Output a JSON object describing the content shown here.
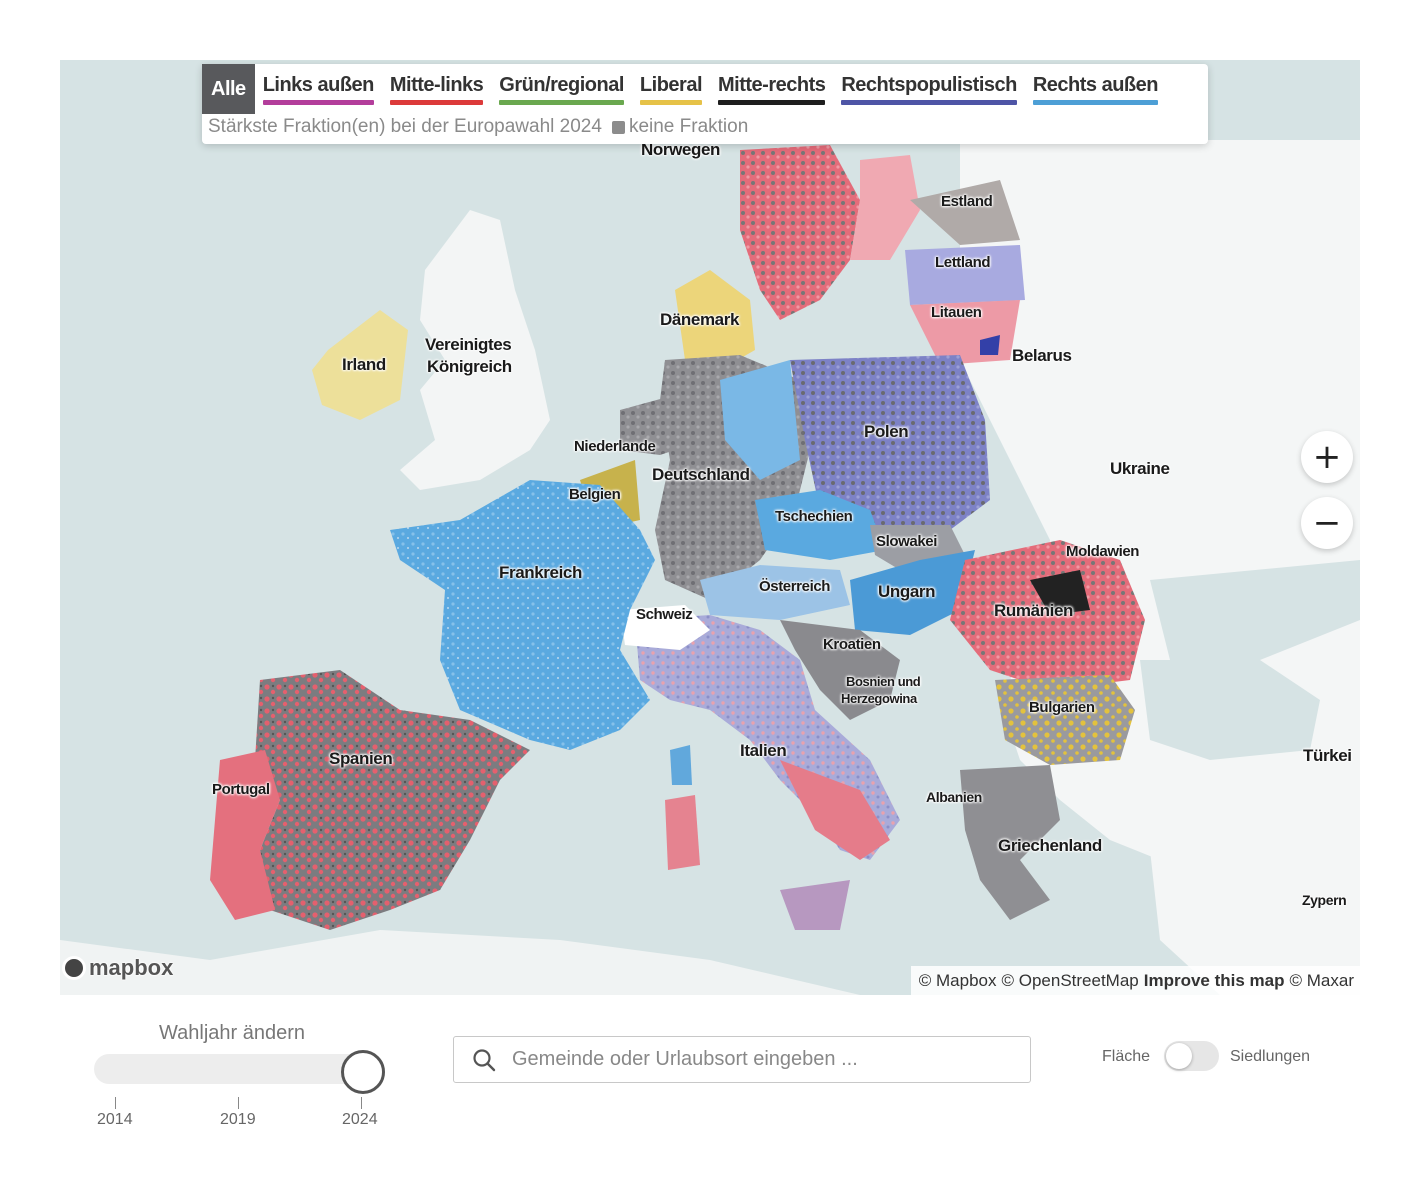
{
  "legend": {
    "tabs": [
      {
        "label": "Alle",
        "color": "#58595c",
        "active": true
      },
      {
        "label": "Links außen",
        "color": "#b33d9b"
      },
      {
        "label": "Mitte-links",
        "color": "#dc3a3a"
      },
      {
        "label": "Grün/regional",
        "color": "#6aa84f"
      },
      {
        "label": "Liberal",
        "color": "#e6c248"
      },
      {
        "label": "Mitte-rechts",
        "color": "#1e1e1e"
      },
      {
        "label": "Rechtspopulistisch",
        "color": "#4e55a6"
      },
      {
        "label": "Rechts außen",
        "color": "#4d9fd6"
      }
    ],
    "subtitle": "Stärkste Fraktion(en) bei der Europawahl 2024",
    "no_faction": "keine Fraktion"
  },
  "map": {
    "labels": {
      "norwegen": "Norwegen",
      "estland": "Estland",
      "lettland": "Lettland",
      "litauen": "Litauen",
      "belarus": "Belarus",
      "daenemark": "Dänemark",
      "irland": "Irland",
      "uk_1": "Vereinigtes",
      "uk_2": "Königreich",
      "niederlande": "Niederlande",
      "deutschland": "Deutschland",
      "polen": "Polen",
      "ukraine": "Ukraine",
      "belgien": "Belgien",
      "tschechien": "Tschechien",
      "slowakei": "Slowakei",
      "moldawien": "Moldawien",
      "frankreich": "Frankreich",
      "oesterreich": "Österreich",
      "ungarn": "Ungarn",
      "rumaenien": "Rumänien",
      "schweiz": "Schweiz",
      "kroatien": "Kroatien",
      "bosnien_1": "Bosnien und",
      "bosnien_2": "Herzegowina",
      "bulgarien": "Bulgarien",
      "spanien": "Spanien",
      "portugal": "Portugal",
      "italien": "Italien",
      "albanien": "Albanien",
      "tuerkei": "Türkei",
      "griechenland": "Griechenland",
      "zypern": "Zypern"
    },
    "zoom_in": "+",
    "zoom_out": "−",
    "logo": "mapbox",
    "attribution": {
      "mapbox": "© Mapbox",
      "osm": "© OpenStreetMap",
      "improve": "Improve this map",
      "maxar": "© Maxar"
    }
  },
  "controls": {
    "year_label": "Wahljahr ändern",
    "years": [
      "2014",
      "2019",
      "2024"
    ],
    "selected_year": "2024",
    "search_placeholder": "Gemeinde oder Urlaubsort eingeben ...",
    "toggle_left": "Fläche",
    "toggle_right": "Siedlungen",
    "toggle_on": false
  }
}
